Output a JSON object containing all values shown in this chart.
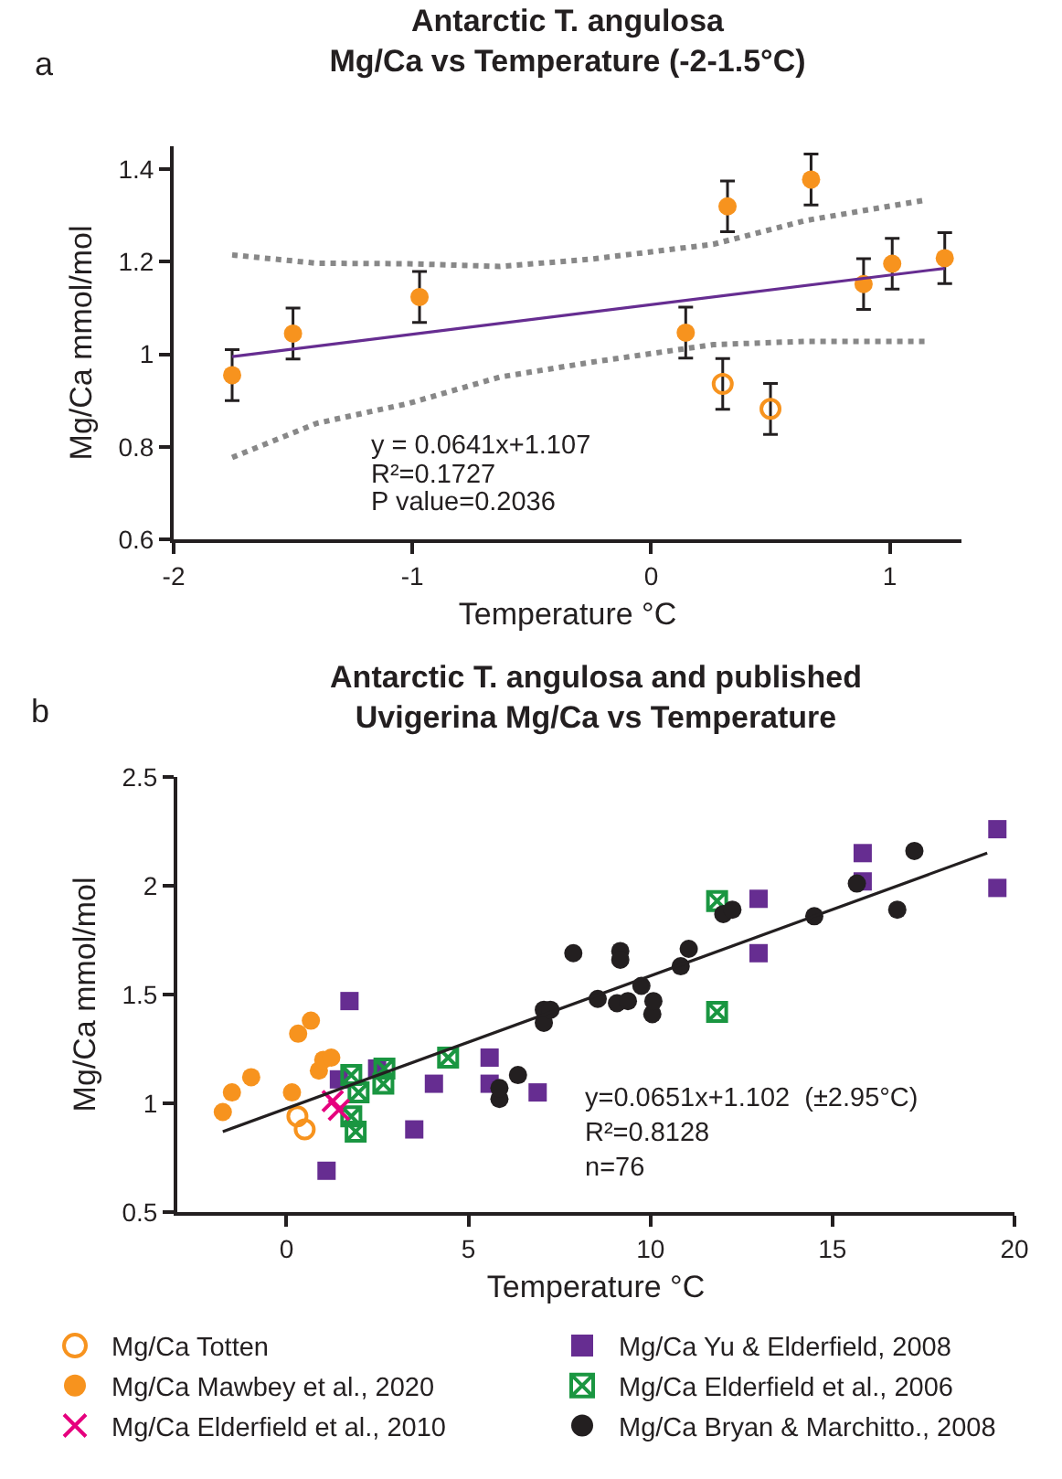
{
  "chart_data": [
    {
      "type": "scatter",
      "title": "Antarctic T. angulosa\nMg/Ca vs Temperature (-2-1.5°C)",
      "xlabel": "Temperature °C",
      "ylabel": "Mg/Ca mmol/mol",
      "annotations": [
        "a",
        "y = 0.0641x+1.107",
        "R²=0.1727",
        "P value=0.2036"
      ],
      "xlim": [
        -2,
        1.3
      ],
      "xticks": [
        -2,
        -1,
        0,
        1
      ],
      "ylim": [
        0.6,
        1.45
      ],
      "yticks": [
        0.6,
        0.8,
        1.0,
        1.2,
        1.4
      ],
      "grid": false,
      "legend": false,
      "series": [
        {
          "color": "#f7931e",
          "marker": "circle",
          "x": [
            -1.755,
            -1.5,
            -0.97,
            0.145,
            0.32,
            0.67,
            0.89,
            1.01,
            1.23
          ],
          "values": [
            0.955,
            1.045,
            1.124,
            1.047,
            1.32,
            1.378,
            1.152,
            1.196,
            1.208
          ],
          "errors": [
            0.055,
            0.055,
            0.055,
            0.055,
            0.055,
            0.055,
            0.055,
            0.055,
            0.055
          ]
        },
        {
          "color": "#f7931e",
          "marker": "circle-open",
          "x": [
            0.3,
            0.5
          ],
          "values": [
            0.936,
            0.882
          ],
          "errors": [
            0.055,
            0.055
          ]
        },
        {
          "type": "line",
          "color": "#662d91",
          "line_style": "solid",
          "x": [
            -1.755,
            1.23
          ],
          "values": [
            0.995,
            1.186
          ]
        },
        {
          "type": "line",
          "color": "#888888",
          "line_style": "dotted",
          "x": [
            -1.755,
            -1.4,
            -1.015,
            -0.633,
            -0.25,
            0.26,
            0.643,
            1.153
          ],
          "values": [
            1.215,
            1.197,
            1.196,
            1.19,
            1.206,
            1.238,
            1.289,
            1.334
          ]
        },
        {
          "type": "line",
          "color": "#888888",
          "line_style": "dotted",
          "x": [
            -1.755,
            -1.4,
            -1.015,
            -0.633,
            -0.25,
            0.26,
            0.643,
            1.153
          ],
          "values": [
            0.777,
            0.851,
            0.894,
            0.951,
            0.983,
            1.021,
            1.028,
            1.028
          ]
        }
      ]
    },
    {
      "type": "scatter",
      "title": "Antarctic T. angulosa and published\nUvigerina Mg/Ca vs Temperature",
      "xlabel": "Temperature °C",
      "ylabel": "Mg/Ca mmol/mol",
      "annotations": [
        "b",
        "y=0.0651x+1.102  (±2.95°C)",
        "R²=0.8128",
        "n=76"
      ],
      "xlim": [
        -3,
        20
      ],
      "xticks": [
        0,
        5,
        10,
        15,
        20
      ],
      "ylim": [
        0.5,
        2.5
      ],
      "yticks": [
        0.5,
        1.0,
        1.5,
        2.0,
        2.5
      ],
      "grid": false,
      "legend": "bottom",
      "series": [
        {
          "name": "Mg/Ca Totten",
          "color": "#f7931e",
          "marker": "circle-open",
          "x": [
            0.3,
            0.5
          ],
          "values": [
            0.94,
            0.88
          ]
        },
        {
          "name": "Mg/Ca Yu & Elderfield, 2008",
          "color": "#662d91",
          "marker": "square",
          "x": [
            1.73,
            1.44,
            2.49,
            1.1,
            3.51,
            4.05,
            5.58,
            5.58,
            6.9,
            12.97,
            12.97,
            15.83,
            15.83,
            19.53,
            19.53
          ],
          "values": [
            1.47,
            1.11,
            1.16,
            0.69,
            0.88,
            1.09,
            1.21,
            1.09,
            1.05,
            1.94,
            1.69,
            2.15,
            2.02,
            2.26,
            1.99
          ]
        },
        {
          "name": "Mg/Ca Mawbey et al., 2020",
          "color": "#f7931e",
          "marker": "circle",
          "x": [
            -1.75,
            -1.5,
            -0.97,
            0.15,
            0.32,
            0.67,
            0.89,
            1.01,
            1.23
          ],
          "values": [
            0.96,
            1.05,
            1.12,
            1.05,
            1.32,
            1.38,
            1.15,
            1.2,
            1.21
          ]
        },
        {
          "name": "Mg/Ca Elderfield et al., 2006",
          "color": "#1a9641",
          "x": [
            1.78,
            1.98,
            1.78,
            1.9,
            2.66,
            2.69,
            4.44,
            11.83,
            11.83
          ],
          "values": [
            1.13,
            1.05,
            0.94,
            0.87,
            1.09,
            1.16,
            1.21,
            1.93,
            1.42
          ]
        },
        {
          "name": "Mg/Ca Elderfield et al., 2010",
          "color": "#e6007e",
          "marker": "cross",
          "x": [
            1.27,
            1.44
          ],
          "values": [
            1.01,
            0.97
          ]
        },
        {
          "name": "Mg/Ca Bryan & Marchitto., 2008",
          "color": "#231f20",
          "marker": "circle",
          "x": [
            5.85,
            5.85,
            6.36,
            7.07,
            7.07,
            7.25,
            7.88,
            8.55,
            9.08,
            9.17,
            9.17,
            9.38,
            9.75,
            10.05,
            10.08,
            10.83,
            11.05,
            12.0,
            12.25,
            14.5,
            15.67,
            16.78,
            17.25
          ],
          "values": [
            1.02,
            1.07,
            1.13,
            1.43,
            1.37,
            1.43,
            1.69,
            1.48,
            1.46,
            1.7,
            1.66,
            1.47,
            1.54,
            1.41,
            1.47,
            1.63,
            1.71,
            1.87,
            1.89,
            1.86,
            2.01,
            1.89,
            2.16
          ]
        },
        {
          "type": "line",
          "color": "#231f20",
          "line_style": "solid",
          "x": [
            -1.75,
            19.25
          ],
          "values": [
            0.87,
            2.15
          ]
        }
      ]
    }
  ]
}
